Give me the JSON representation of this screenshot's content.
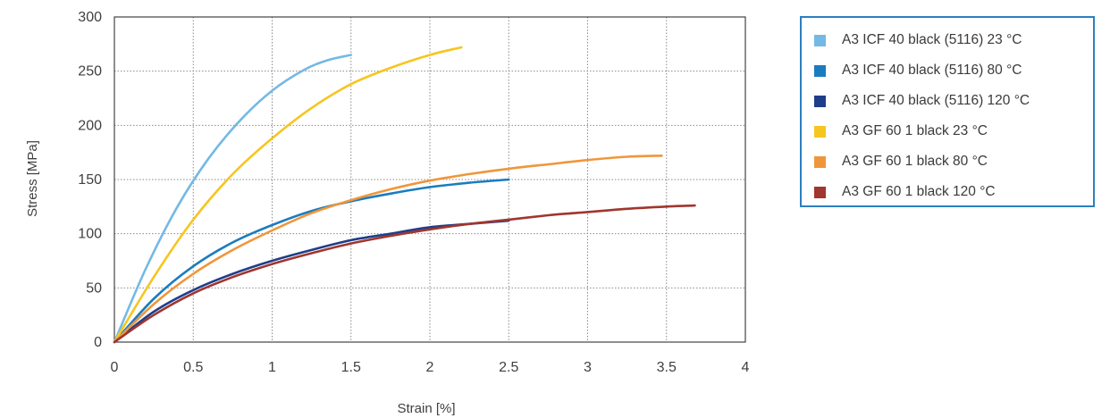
{
  "chart_data": {
    "type": "line",
    "xlabel": "Strain [%]",
    "ylabel": "Stress [MPa]",
    "xlim": [
      0,
      4
    ],
    "ylim": [
      0,
      300
    ],
    "xticks": [
      "0",
      "0.5",
      "1",
      "1.5",
      "2",
      "2.5",
      "3",
      "3.5",
      "4"
    ],
    "yticks": [
      "0",
      "50",
      "100",
      "150",
      "200",
      "250",
      "300"
    ],
    "grid": true,
    "legend_position": "right",
    "series": [
      {
        "name": "A3 ICF 40 black (5116) 23 °C",
        "color": "#74b9e4",
        "points": [
          [
            0,
            0
          ],
          [
            0.2,
            68
          ],
          [
            0.4,
            125
          ],
          [
            0.6,
            170
          ],
          [
            0.8,
            205
          ],
          [
            1.0,
            232
          ],
          [
            1.2,
            251
          ],
          [
            1.35,
            260
          ],
          [
            1.5,
            265
          ]
        ]
      },
      {
        "name": "A3 ICF 40 black (5116) 80 °C",
        "color": "#1a7cc0",
        "points": [
          [
            0,
            0
          ],
          [
            0.25,
            40
          ],
          [
            0.5,
            70
          ],
          [
            0.75,
            92
          ],
          [
            1.0,
            108
          ],
          [
            1.25,
            121
          ],
          [
            1.5,
            130
          ],
          [
            1.75,
            137
          ],
          [
            2.0,
            143
          ],
          [
            2.25,
            147
          ],
          [
            2.5,
            150
          ]
        ]
      },
      {
        "name": "A3 ICF 40 black (5116) 120 °C",
        "color": "#1f3e8a",
        "points": [
          [
            0,
            0
          ],
          [
            0.25,
            28
          ],
          [
            0.5,
            48
          ],
          [
            0.75,
            63
          ],
          [
            1.0,
            75
          ],
          [
            1.25,
            85
          ],
          [
            1.5,
            94
          ],
          [
            1.75,
            100
          ],
          [
            2.0,
            106
          ],
          [
            2.25,
            109
          ],
          [
            2.5,
            112
          ]
        ]
      },
      {
        "name": "A3 GF 60 1 black 23 °C",
        "color": "#f7c520",
        "points": [
          [
            0,
            0
          ],
          [
            0.25,
            60
          ],
          [
            0.5,
            113
          ],
          [
            0.75,
            155
          ],
          [
            1.0,
            188
          ],
          [
            1.25,
            216
          ],
          [
            1.5,
            238
          ],
          [
            1.75,
            253
          ],
          [
            2.0,
            265
          ],
          [
            2.2,
            272
          ]
        ]
      },
      {
        "name": "A3 GF 60 1 black 80 °C",
        "color": "#f0963a",
        "points": [
          [
            0,
            0
          ],
          [
            0.25,
            35
          ],
          [
            0.5,
            63
          ],
          [
            0.75,
            85
          ],
          [
            1.0,
            103
          ],
          [
            1.25,
            119
          ],
          [
            1.5,
            131
          ],
          [
            1.75,
            141
          ],
          [
            2.0,
            149
          ],
          [
            2.25,
            155
          ],
          [
            2.5,
            160
          ],
          [
            2.75,
            164
          ],
          [
            3.0,
            168
          ],
          [
            3.25,
            171
          ],
          [
            3.47,
            172
          ]
        ]
      },
      {
        "name": "A3 GF 60 1 black 120 °C",
        "color": "#a0362e",
        "points": [
          [
            0,
            0
          ],
          [
            0.25,
            25
          ],
          [
            0.5,
            45
          ],
          [
            0.75,
            60
          ],
          [
            1.0,
            72
          ],
          [
            1.25,
            82
          ],
          [
            1.5,
            91
          ],
          [
            1.75,
            98
          ],
          [
            2.0,
            104
          ],
          [
            2.25,
            109
          ],
          [
            2.5,
            113
          ],
          [
            2.75,
            117
          ],
          [
            3.0,
            120
          ],
          [
            3.25,
            123
          ],
          [
            3.5,
            125
          ],
          [
            3.68,
            126
          ]
        ]
      }
    ]
  }
}
